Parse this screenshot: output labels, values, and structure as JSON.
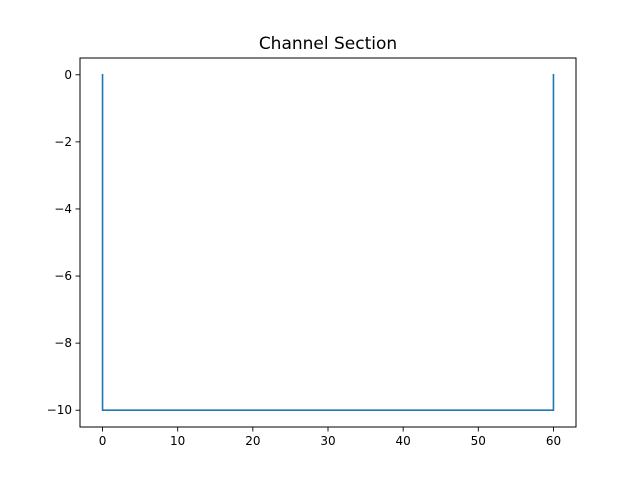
{
  "chart_data": {
    "type": "line",
    "title": "Channel Section",
    "xlabel": "",
    "ylabel": "",
    "xlim": [
      -3,
      63
    ],
    "ylim": [
      -10.5,
      0.5
    ],
    "xticks": [
      0,
      10,
      20,
      30,
      40,
      50,
      60
    ],
    "yticks": [
      0,
      -2,
      -4,
      -6,
      -8,
      -10
    ],
    "xtick_labels": [
      "0",
      "10",
      "20",
      "30",
      "40",
      "50",
      "60"
    ],
    "ytick_labels": [
      "0",
      "−2",
      "−4",
      "−6",
      "−8",
      "−10"
    ],
    "grid": false,
    "legend": "none",
    "series": [
      {
        "color": "#1f77b4",
        "x": [
          0,
          0,
          60,
          60
        ],
        "y": [
          0,
          -10,
          -10,
          0
        ]
      }
    ]
  }
}
